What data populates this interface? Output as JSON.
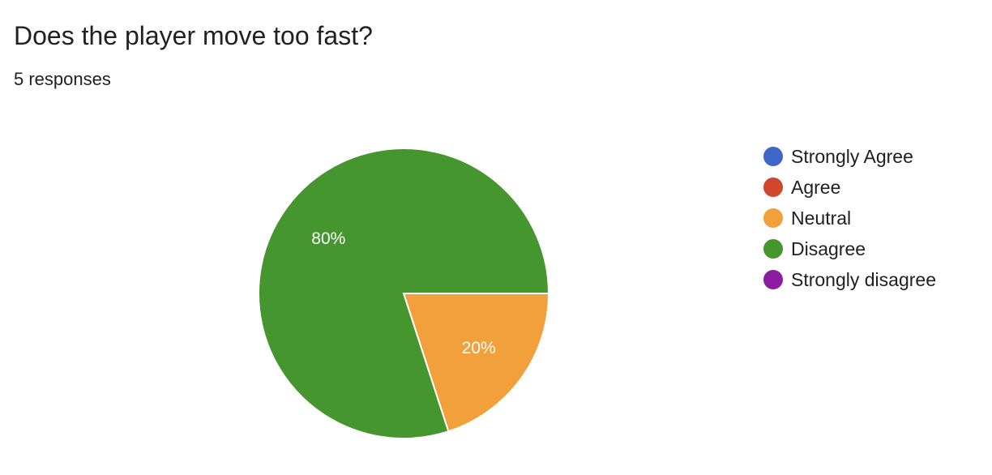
{
  "title": "Does the player move too fast?",
  "responses_text": "5 responses",
  "chart_data": {
    "type": "pie",
    "categories": [
      "Strongly Agree",
      "Agree",
      "Neutral",
      "Disagree",
      "Strongly disagree"
    ],
    "values": [
      0,
      0,
      1,
      4,
      0
    ],
    "percent_labels": [
      "0%",
      "0%",
      "20%",
      "80%",
      "0%"
    ],
    "colors": [
      "#3f67c7",
      "#d0472c",
      "#f2a03c",
      "#46962f",
      "#8c1ca0"
    ],
    "legend_position": "right"
  }
}
